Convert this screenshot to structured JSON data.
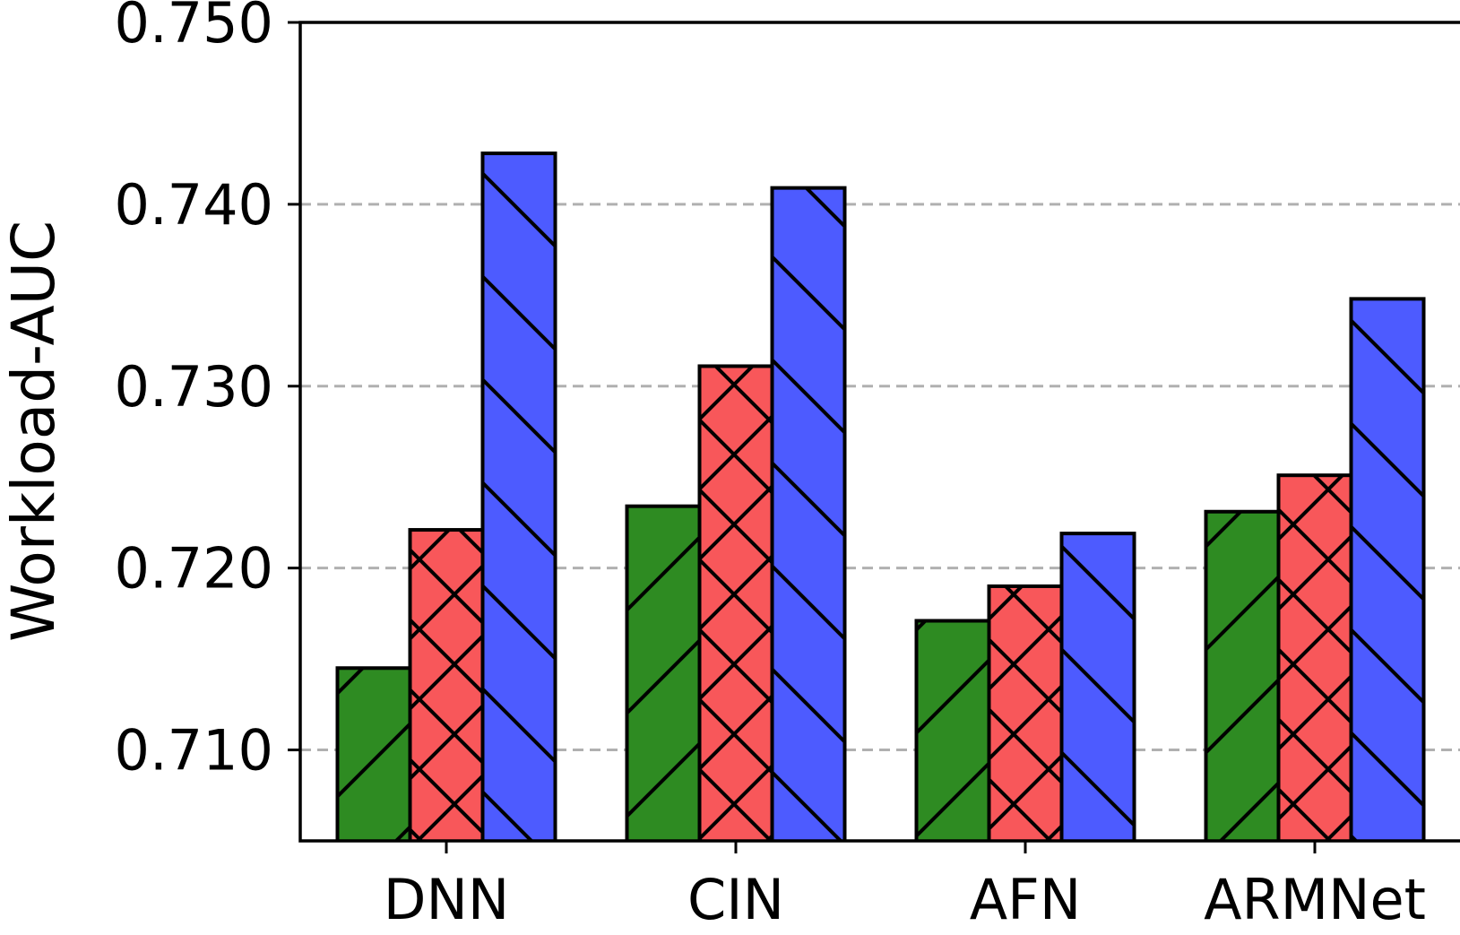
{
  "chart_data": {
    "type": "bar",
    "title": "",
    "xlabel": "",
    "ylabel": "Workload-AUC",
    "categories": [
      "DNN",
      "CIN",
      "AFN",
      "ARMNet"
    ],
    "ylim": [
      0.705,
      0.75
    ],
    "yticks": [
      "0.710",
      "0.720",
      "0.730",
      "0.740",
      "0.750"
    ],
    "grid": "horizontal-dashed",
    "series": [
      {
        "values": [
          0.7145,
          0.7234,
          0.7171,
          0.7231
        ],
        "color": "#2e8b22",
        "hatch": "forward-slash"
      },
      {
        "values": [
          0.7221,
          0.7311,
          0.719,
          0.7251
        ],
        "color": "#f8575a",
        "hatch": "cross"
      },
      {
        "values": [
          0.7428,
          0.7409,
          0.7219,
          0.7348
        ],
        "color": "#4d5bff",
        "hatch": "back-slash"
      }
    ]
  }
}
